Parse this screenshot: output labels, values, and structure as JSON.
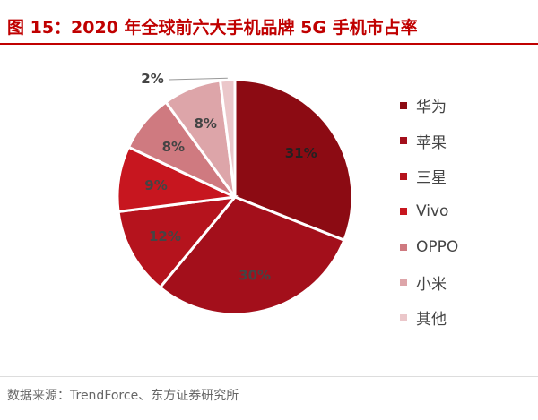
{
  "title": "图 15：2020 年全球前六大手机品牌 5G 手机市占率",
  "source": "数据来源：TrendForce、东方证券研究所",
  "chart_data": {
    "type": "pie",
    "title": "图 15：2020 年全球前六大手机品牌 5G 手机市占率",
    "categories": [
      "华为",
      "苹果",
      "三星",
      "Vivo",
      "OPPO",
      "小米",
      "其他"
    ],
    "values": [
      31,
      30,
      12,
      9,
      8,
      8,
      2
    ],
    "labels": [
      "31%",
      "30%",
      "12%",
      "9%",
      "8%",
      "8%",
      "2%"
    ],
    "colors": [
      "#8c0b13",
      "#a30f1b",
      "#b5131d",
      "#c7161f",
      "#cf7a80",
      "#dda5a9",
      "#ebc7ca"
    ],
    "legend_position": "right",
    "start": "top, clockwise"
  }
}
